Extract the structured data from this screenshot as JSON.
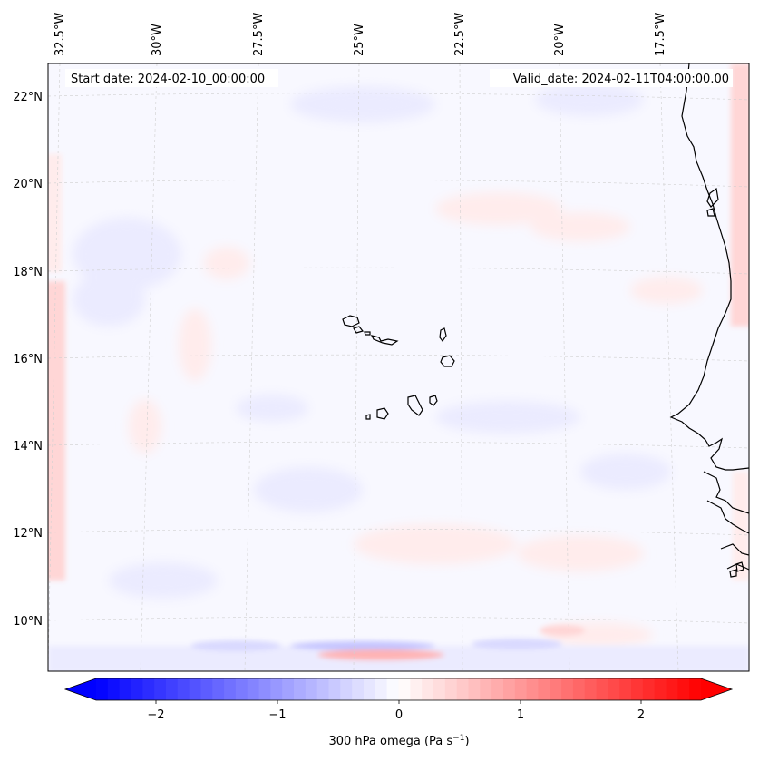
{
  "map": {
    "start_date_text": "Start date: 2024-02-10_00:00:00",
    "valid_date_text": "Valid_date: 2024-02-11T04:00:00.00",
    "lon_ticks": [
      "32.5°W",
      "30°W",
      "27.5°W",
      "25°W",
      "22.5°W",
      "20°W",
      "17.5°W"
    ],
    "lat_ticks": [
      "22°N",
      "20°N",
      "18°N",
      "16°N",
      "14°N",
      "12°N",
      "10°N"
    ],
    "field_colors": {
      "background": "#f8f8ff",
      "light_blue": "#ebebff",
      "mid_blue": "#d9d9ff",
      "light_red": "#ffecec",
      "mid_red": "#ffd6d6",
      "strong_red": "#ffb3b3",
      "strong_blue": "#c4c4ff"
    },
    "coastline_color": "#000000",
    "gridline_color": "#cfcfcf"
  },
  "colorbar": {
    "ticks": [
      "−2",
      "−1",
      "0",
      "1",
      "2"
    ],
    "label": "300 hPa omega (Pa s",
    "label_exp": "−1",
    "label_close": ")",
    "cmap": "bwr",
    "range": [
      -2.7,
      2.7
    ]
  }
}
